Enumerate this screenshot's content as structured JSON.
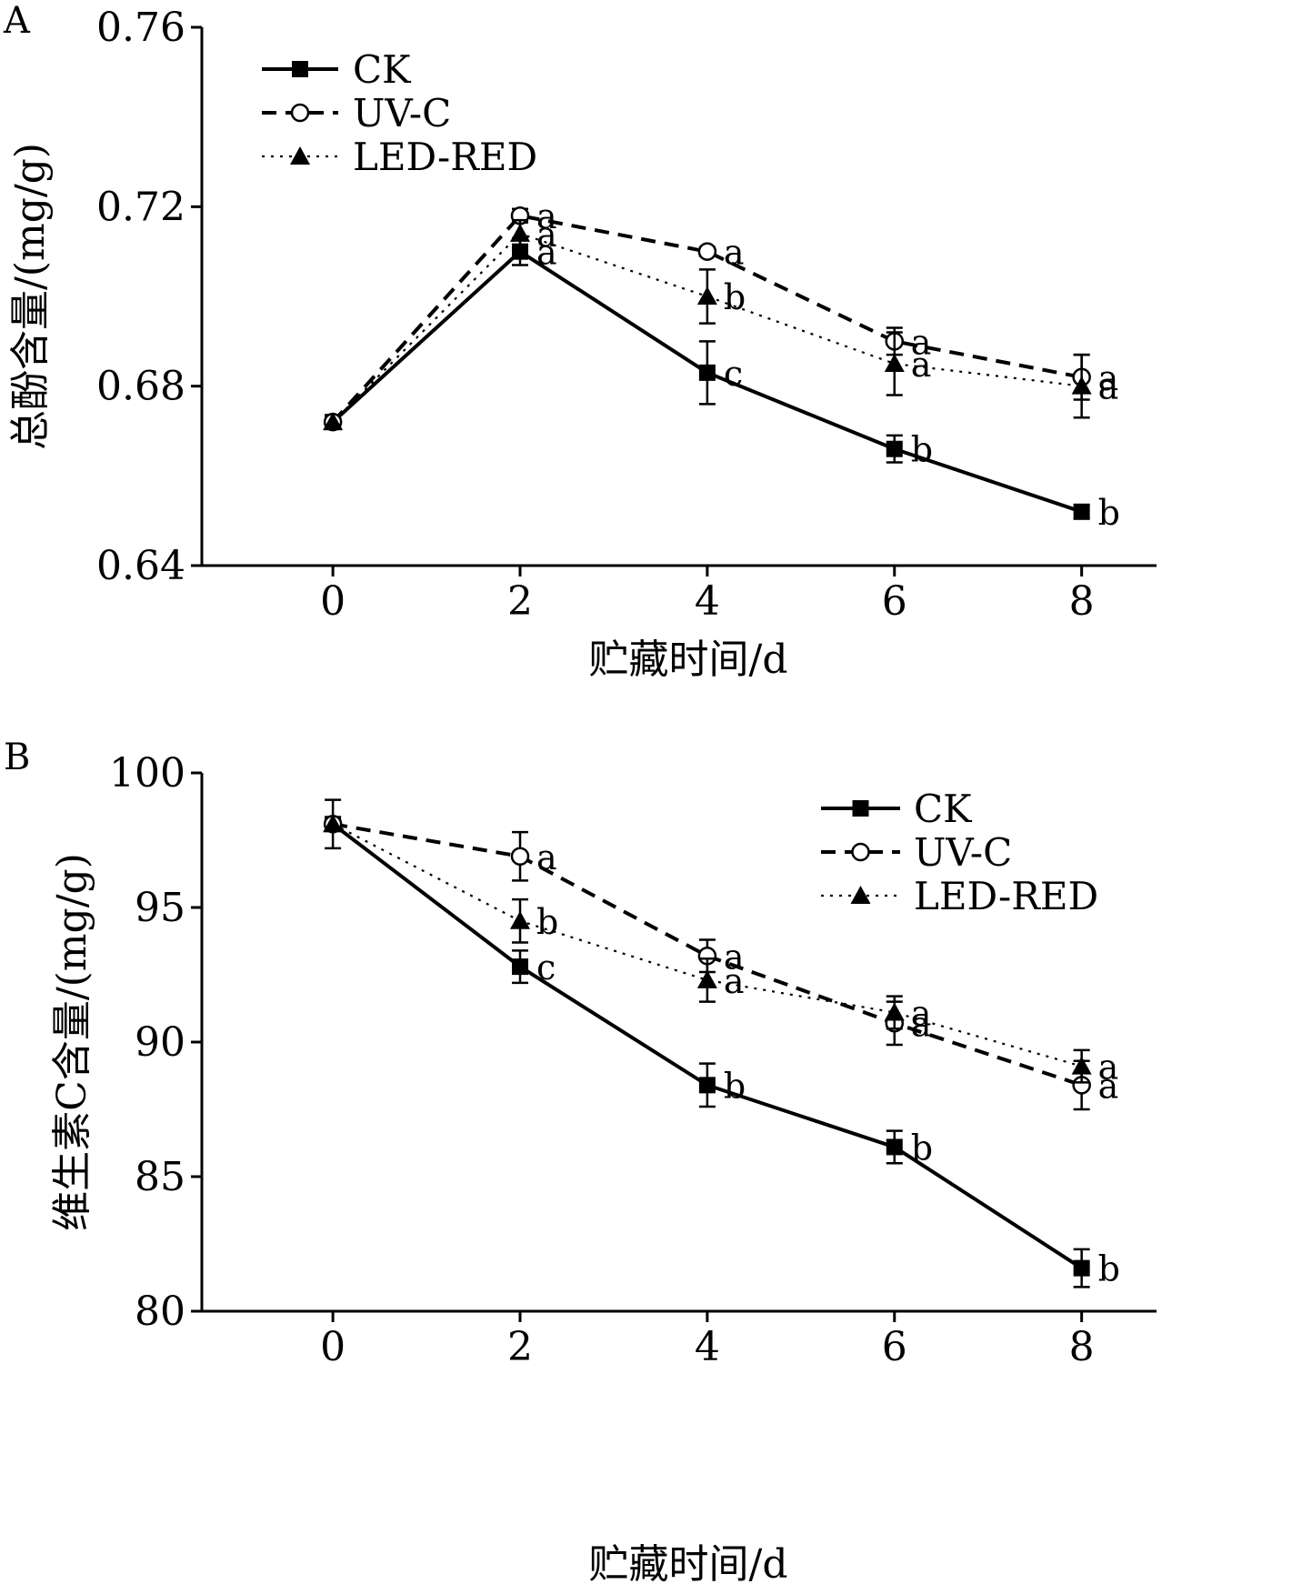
{
  "chart_data": [
    {
      "type": "line",
      "panel": "A",
      "xlabel": "贮藏时间/d",
      "ylabel": "总酚含量/(mg/g)",
      "x": [
        0,
        2,
        4,
        6,
        8
      ],
      "xlim": [
        -1.4,
        8.8
      ],
      "ylim": [
        0.64,
        0.76
      ],
      "yticks": [
        "0.64",
        "0.68",
        "0.72",
        "0.76"
      ],
      "ytick_values": [
        0.64,
        0.68,
        0.72,
        0.76
      ],
      "xticks": [
        "0",
        "2",
        "4",
        "6",
        "8"
      ],
      "legend_position": "top-left",
      "grid": false,
      "series": [
        {
          "name": "CK",
          "style": "solid",
          "marker": "square",
          "values": [
            0.672,
            0.71,
            0.683,
            0.666,
            0.652
          ],
          "errors": [
            0.0,
            0.003,
            0.007,
            0.003,
            0.0015
          ],
          "letters": [
            "",
            "a",
            "c",
            "b",
            "b"
          ]
        },
        {
          "name": "UV-C",
          "style": "dashed",
          "marker": "circle",
          "values": [
            0.672,
            0.718,
            0.71,
            0.69,
            0.682
          ],
          "errors": [
            0.0,
            0.0015,
            0.001,
            0.003,
            0.005
          ],
          "letters": [
            "",
            "a",
            "a",
            "a",
            "a"
          ]
        },
        {
          "name": "LED-RED",
          "style": "dotted",
          "marker": "triangle",
          "values": [
            0.672,
            0.714,
            0.7,
            0.685,
            0.68
          ],
          "errors": [
            0.0,
            0.003,
            0.006,
            0.007,
            0.007
          ],
          "letters": [
            "",
            "a",
            "b",
            "a",
            "a"
          ]
        }
      ]
    },
    {
      "type": "line",
      "panel": "B",
      "xlabel": "贮藏时间/d",
      "ylabel": "维生素C含量/(mg/g)",
      "x": [
        0,
        2,
        4,
        6,
        8
      ],
      "xlim": [
        -1.4,
        8.8
      ],
      "ylim": [
        80,
        100
      ],
      "yticks": [
        "80",
        "85",
        "90",
        "95",
        "100"
      ],
      "ytick_values": [
        80,
        85,
        90,
        95,
        100
      ],
      "xticks": [
        "0",
        "2",
        "4",
        "6",
        "8"
      ],
      "legend_position": "top-right",
      "grid": false,
      "series": [
        {
          "name": "CK",
          "style": "solid",
          "marker": "square",
          "values": [
            98.1,
            92.8,
            88.4,
            86.1,
            81.6
          ],
          "errors": [
            0.9,
            0.6,
            0.8,
            0.6,
            0.7
          ],
          "letters": [
            "",
            "c",
            "b",
            "b",
            "b"
          ]
        },
        {
          "name": "UV-C",
          "style": "dashed",
          "marker": "circle",
          "values": [
            98.1,
            96.9,
            93.2,
            90.7,
            88.4
          ],
          "errors": [
            0.0,
            0.9,
            0.6,
            0.8,
            0.9
          ],
          "letters": [
            "",
            "a",
            "a",
            "a",
            "a"
          ]
        },
        {
          "name": "LED-RED",
          "style": "dotted",
          "marker": "triangle",
          "values": [
            98.1,
            94.5,
            92.3,
            91.1,
            89.1
          ],
          "errors": [
            0.0,
            0.8,
            0.8,
            0.6,
            0.6
          ],
          "letters": [
            "",
            "b",
            "a",
            "a",
            "a"
          ]
        }
      ]
    }
  ]
}
